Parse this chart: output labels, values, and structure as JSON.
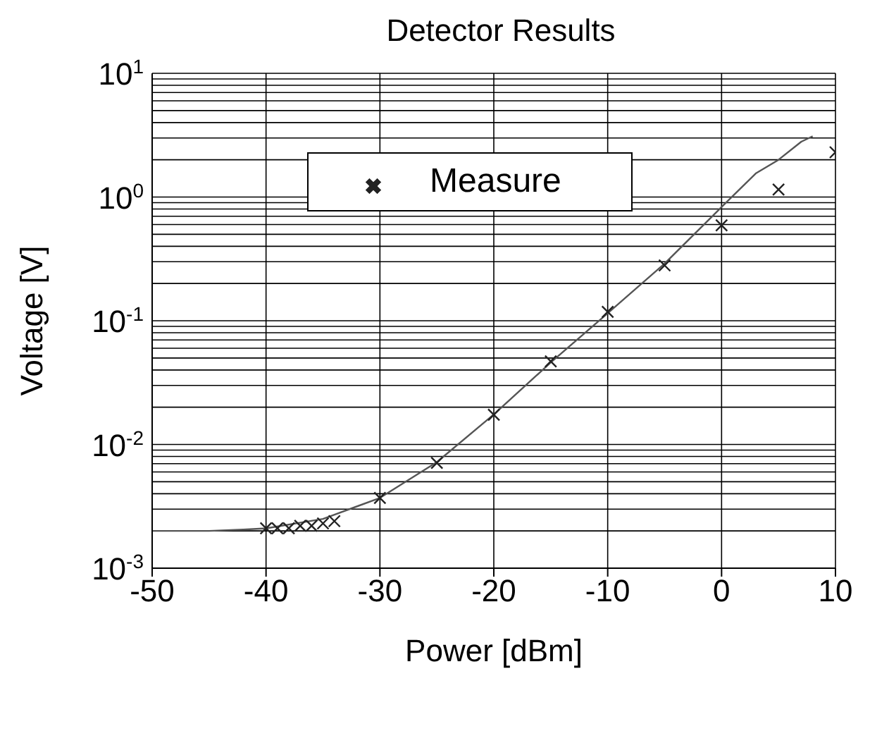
{
  "chart_data": {
    "type": "line",
    "title": "Detector Results",
    "xlabel": "Power [dBm]",
    "ylabel": "Voltage [V]",
    "xlim": [
      -50,
      10
    ],
    "xticks": [
      -50,
      -40,
      -30,
      -20,
      -10,
      0,
      10
    ],
    "ylim": [
      0.001,
      10
    ],
    "log": "y",
    "grid": true,
    "legend": "top",
    "yticks": [
      {
        "value": 0.001,
        "label": "10$^{-3}$"
      },
      {
        "value": 0.002,
        "label": null
      },
      {
        "value": 0.003,
        "label": null
      },
      {
        "value": 0.004,
        "label": null
      },
      {
        "value": 0.005,
        "label": null
      },
      {
        "value": 0.006,
        "label": null
      },
      {
        "value": 0.007,
        "label": null
      },
      {
        "value": 0.008,
        "label": null
      },
      {
        "value": 0.009,
        "label": null
      },
      {
        "value": 0.01,
        "label": "10$^{-2}$"
      },
      {
        "value": 0.02,
        "label": null
      },
      {
        "value": 0.03,
        "label": null
      },
      {
        "value": 0.04,
        "label": null
      },
      {
        "value": 0.05,
        "label": null
      },
      {
        "value": 0.06,
        "label": null
      },
      {
        "value": 0.07,
        "label": null
      },
      {
        "value": 0.08,
        "label": null
      },
      {
        "value": 0.09,
        "label": null
      },
      {
        "value": 0.1,
        "label": "10$^{-1}$"
      },
      {
        "value": 0.2,
        "label": null
      },
      {
        "value": 0.3,
        "label": null
      },
      {
        "value": 0.4,
        "label": null
      },
      {
        "value": 0.5,
        "label": null
      },
      {
        "value": 0.6,
        "label": null
      },
      {
        "value": 0.7,
        "label": null
      },
      {
        "value": 0.8,
        "label": null
      },
      {
        "value": 0.9,
        "label": null
      },
      {
        "value": 1,
        "label": "10$^{0}$"
      },
      {
        "value": 2,
        "label": null
      },
      {
        "value": 3,
        "label": null
      },
      {
        "value": 4,
        "label": null
      },
      {
        "value": 5,
        "label": null
      },
      {
        "value": 6,
        "label": null
      },
      {
        "value": 7,
        "label": null
      },
      {
        "value": 8,
        "label": null
      },
      {
        "value": 9,
        "label": null
      },
      {
        "value": 10,
        "label": "10$^{1}$"
      }
    ],
    "series": [
      {
        "color": "#555555",
        "line_style": "solid",
        "marker": "none",
        "x": [
          -50,
          -45,
          -42,
          -40,
          -35,
          -30,
          -25,
          -20,
          -15,
          -10,
          -5,
          0,
          3,
          5,
          7,
          8
        ],
        "values": [
          0.002,
          0.002,
          0.00205,
          0.0021,
          0.0025,
          0.0037,
          0.0072,
          0.0175,
          0.046,
          0.115,
          0.29,
          0.83,
          1.55,
          2.0,
          2.8,
          3.1
        ]
      },
      {
        "type": "scatter",
        "name": "Measure",
        "color": "#222222",
        "marker": "cross",
        "x": [
          -40,
          -39,
          -38,
          -37,
          -36,
          -35,
          -34,
          -30,
          -25,
          -20,
          -15,
          -10,
          -5,
          0,
          5,
          10
        ],
        "values": [
          0.0021,
          0.0021,
          0.0021,
          0.0022,
          0.0022,
          0.0023,
          0.0024,
          0.0037,
          0.0071,
          0.0174,
          0.047,
          0.118,
          0.28,
          0.59,
          1.15,
          2.3
        ]
      }
    ]
  }
}
